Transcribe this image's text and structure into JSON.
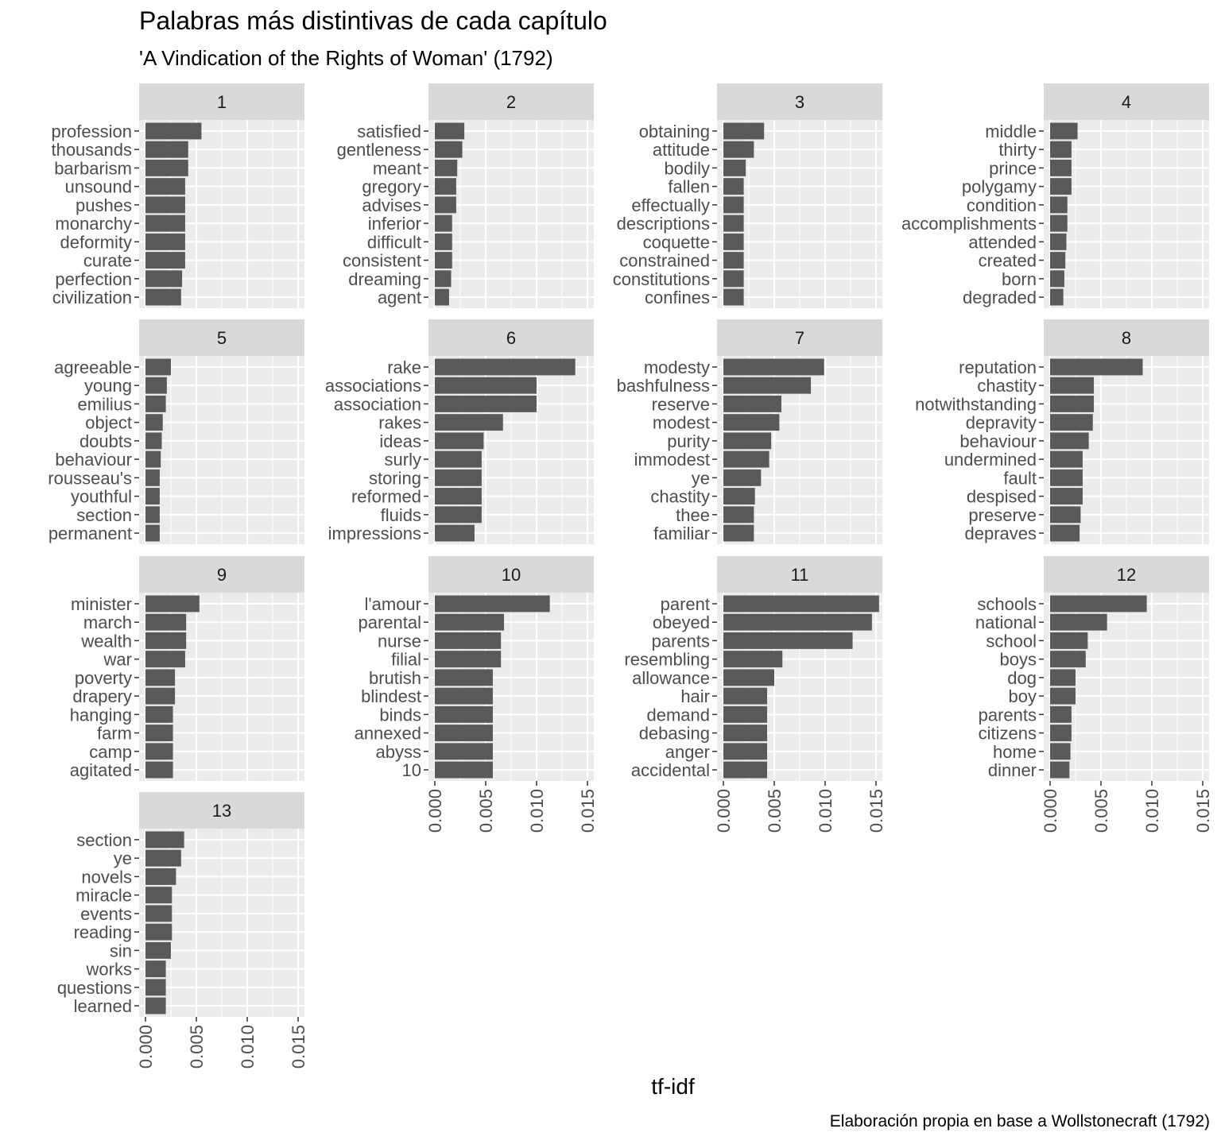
{
  "chart_data": {
    "type": "bar",
    "orientation": "horizontal",
    "title": "Palabras más distintivas de cada capítulo",
    "subtitle": "'A Vindication of the Rights of Woman' (1792)",
    "xlabel": "tf-idf",
    "caption": "Elaboración propia en base a Wollstonecraft (1792)",
    "xlim": [
      0,
      0.015
    ],
    "x_ticks": [
      "0.000",
      "0.005",
      "0.010",
      "0.015"
    ],
    "grid": true,
    "facets": [
      {
        "label": "1",
        "words": [
          "profession",
          "thousands",
          "barbarism",
          "unsound",
          "pushes",
          "monarchy",
          "deformity",
          "curate",
          "perfection",
          "civilization"
        ],
        "values": [
          0.0055,
          0.0042,
          0.0042,
          0.0039,
          0.0039,
          0.0039,
          0.0039,
          0.0039,
          0.0036,
          0.0035
        ]
      },
      {
        "label": "2",
        "words": [
          "satisfied",
          "gentleness",
          "meant",
          "gregory",
          "advises",
          "inferior",
          "difficult",
          "consistent",
          "dreaming",
          "agent"
        ],
        "values": [
          0.0029,
          0.0027,
          0.0022,
          0.0021,
          0.0021,
          0.0017,
          0.0017,
          0.0017,
          0.0016,
          0.0014
        ]
      },
      {
        "label": "3",
        "words": [
          "obtaining",
          "attitude",
          "bodily",
          "fallen",
          "effectually",
          "descriptions",
          "coquette",
          "constrained",
          "constitutions",
          "confines"
        ],
        "values": [
          0.004,
          0.003,
          0.0022,
          0.002,
          0.002,
          0.002,
          0.002,
          0.002,
          0.002,
          0.002
        ]
      },
      {
        "label": "4",
        "words": [
          "middle",
          "thirty",
          "prince",
          "polygamy",
          "condition",
          "accomplishments",
          "attended",
          "created",
          "born",
          "degraded"
        ],
        "values": [
          0.0027,
          0.0021,
          0.0021,
          0.0021,
          0.0017,
          0.0017,
          0.0016,
          0.0015,
          0.0014,
          0.0013
        ]
      },
      {
        "label": "5",
        "words": [
          "agreeable",
          "young",
          "emilius",
          "object",
          "doubts",
          "behaviour",
          "rousseau's",
          "youthful",
          "section",
          "permanent"
        ],
        "values": [
          0.0025,
          0.0021,
          0.002,
          0.0017,
          0.0016,
          0.0015,
          0.0014,
          0.0014,
          0.0014,
          0.0014
        ]
      },
      {
        "label": "6",
        "words": [
          "rake",
          "associations",
          "association",
          "rakes",
          "ideas",
          "surly",
          "storing",
          "reformed",
          "fluids",
          "impressions"
        ],
        "values": [
          0.0138,
          0.01,
          0.01,
          0.0067,
          0.0048,
          0.0046,
          0.0046,
          0.0046,
          0.0046,
          0.0039
        ]
      },
      {
        "label": "7",
        "words": [
          "modesty",
          "bashfulness",
          "reserve",
          "modest",
          "purity",
          "immodest",
          "ye",
          "chastity",
          "thee",
          "familiar"
        ],
        "values": [
          0.0099,
          0.0086,
          0.0057,
          0.0055,
          0.0047,
          0.0045,
          0.0037,
          0.0031,
          0.003,
          0.003
        ]
      },
      {
        "label": "8",
        "words": [
          "reputation",
          "chastity",
          "notwithstanding",
          "depravity",
          "behaviour",
          "undermined",
          "fault",
          "despised",
          "preserve",
          "depraves"
        ],
        "values": [
          0.0091,
          0.0043,
          0.0043,
          0.0042,
          0.0038,
          0.0032,
          0.0032,
          0.0032,
          0.003,
          0.0029
        ]
      },
      {
        "label": "9",
        "words": [
          "minister",
          "march",
          "wealth",
          "war",
          "poverty",
          "drapery",
          "hanging",
          "farm",
          "camp",
          "agitated"
        ],
        "values": [
          0.0053,
          0.004,
          0.004,
          0.0039,
          0.0029,
          0.0029,
          0.0027,
          0.0027,
          0.0027,
          0.0027
        ]
      },
      {
        "label": "10",
        "words": [
          "l'amour",
          "parental",
          "nurse",
          "filial",
          "brutish",
          "blindest",
          "binds",
          "annexed",
          "abyss",
          "10"
        ],
        "values": [
          0.0113,
          0.0068,
          0.0065,
          0.0065,
          0.0057,
          0.0057,
          0.0057,
          0.0057,
          0.0057,
          0.0057
        ]
      },
      {
        "label": "11",
        "words": [
          "parent",
          "obeyed",
          "parents",
          "resembling",
          "allowance",
          "hair",
          "demand",
          "debasing",
          "anger",
          "accidental"
        ],
        "values": [
          0.0153,
          0.0146,
          0.0127,
          0.0058,
          0.005,
          0.0043,
          0.0043,
          0.0043,
          0.0043,
          0.0043
        ]
      },
      {
        "label": "12",
        "words": [
          "schools",
          "national",
          "school",
          "boys",
          "dog",
          "boy",
          "parents",
          "citizens",
          "home",
          "dinner"
        ],
        "values": [
          0.0095,
          0.0056,
          0.0037,
          0.0035,
          0.0025,
          0.0025,
          0.0021,
          0.0021,
          0.002,
          0.0019
        ]
      },
      {
        "label": "13",
        "words": [
          "section",
          "ye",
          "novels",
          "miracle",
          "events",
          "reading",
          "sin",
          "works",
          "questions",
          "learned"
        ],
        "values": [
          0.0038,
          0.0035,
          0.003,
          0.0026,
          0.0026,
          0.0026,
          0.0025,
          0.002,
          0.002,
          0.002
        ]
      }
    ],
    "colors": {
      "bar": "#595959",
      "panel_background": "#ebebeb",
      "strip_background": "#d9d9d9",
      "grid_line": "#ffffff",
      "axis_text": "#4d4d4d"
    }
  }
}
